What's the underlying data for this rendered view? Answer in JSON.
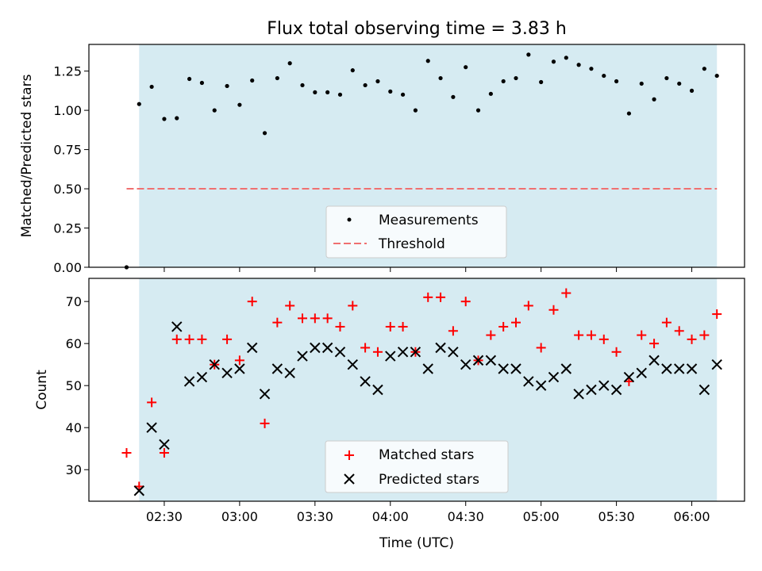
{
  "chart_data": [
    {
      "type": "scatter",
      "title": "Flux total observing time = 3.83 h",
      "xlabel": "",
      "ylabel": "Matched/Predicted stars",
      "xlim": [
        2.0,
        6.35
      ],
      "ylim": [
        0.0,
        1.42
      ],
      "yticks": [
        0.0,
        0.25,
        0.5,
        0.75,
        1.0,
        1.25
      ],
      "ytick_labels": [
        "0.00",
        "0.25",
        "0.50",
        "0.75",
        "1.00",
        "1.25"
      ],
      "shaded_span": [
        2.3333,
        6.1667
      ],
      "threshold": {
        "value": 0.5,
        "x_from": 2.25,
        "x_to": 6.1667,
        "color": "#f07070"
      },
      "legend": {
        "location": "lower center",
        "entries": [
          "Measurements",
          "Threshold"
        ]
      },
      "series": [
        {
          "name": "Measurements",
          "color": "#000000",
          "x": [
            2.25,
            2.3333,
            2.4167,
            2.5,
            2.5833,
            2.6667,
            2.75,
            2.8333,
            2.9167,
            3.0,
            3.0833,
            3.1667,
            3.25,
            3.3333,
            3.4167,
            3.5,
            3.5833,
            3.6667,
            3.75,
            3.8333,
            3.9167,
            4.0,
            4.0833,
            4.1667,
            4.25,
            4.3333,
            4.4167,
            4.5,
            4.5833,
            4.6667,
            4.75,
            4.8333,
            4.9167,
            5.0,
            5.0833,
            5.1667,
            5.25,
            5.3333,
            5.4167,
            5.5,
            5.5833,
            5.6667,
            5.75,
            5.8333,
            5.9167,
            6.0,
            6.0833,
            6.1667
          ],
          "y": [
            0.0,
            1.04,
            1.15,
            0.945,
            0.95,
            1.2,
            1.175,
            1.0,
            1.155,
            1.035,
            1.19,
            0.855,
            1.205,
            1.3,
            1.16,
            1.115,
            1.115,
            1.1,
            1.255,
            1.16,
            1.185,
            1.12,
            1.1,
            1.0,
            1.315,
            1.205,
            1.085,
            1.275,
            1.0,
            1.105,
            1.185,
            1.205,
            1.355,
            1.18,
            1.31,
            1.335,
            1.29,
            1.265,
            1.22,
            1.185,
            0.98,
            1.17,
            1.07,
            1.205,
            1.17,
            1.125,
            1.265,
            1.22
          ]
        }
      ]
    },
    {
      "type": "scatter",
      "title": "",
      "xlabel": "Time (UTC)",
      "ylabel": "Count",
      "xlim": [
        2.0,
        6.35
      ],
      "ylim": [
        22.5,
        75.5
      ],
      "yticks": [
        30,
        40,
        50,
        60,
        70
      ],
      "ytick_labels": [
        "30",
        "40",
        "50",
        "60",
        "70"
      ],
      "xticks": [
        2.5,
        3.0,
        3.5,
        4.0,
        4.5,
        5.0,
        5.5,
        6.0
      ],
      "xtick_labels": [
        "02:30",
        "03:00",
        "03:30",
        "04:00",
        "04:30",
        "05:00",
        "05:30",
        "06:00"
      ],
      "shaded_span": [
        2.3333,
        6.1667
      ],
      "legend": {
        "location": "lower center",
        "entries": [
          "Matched stars",
          "Predicted stars"
        ]
      },
      "series": [
        {
          "name": "Matched stars",
          "marker": "+",
          "color": "#ff0000",
          "x": [
            2.25,
            2.3333,
            2.4167,
            2.5,
            2.5833,
            2.6667,
            2.75,
            2.8333,
            2.9167,
            3.0,
            3.0833,
            3.1667,
            3.25,
            3.3333,
            3.4167,
            3.5,
            3.5833,
            3.6667,
            3.75,
            3.8333,
            3.9167,
            4.0,
            4.0833,
            4.1667,
            4.25,
            4.3333,
            4.4167,
            4.5,
            4.5833,
            4.6667,
            4.75,
            4.8333,
            4.9167,
            5.0,
            5.0833,
            5.1667,
            5.25,
            5.3333,
            5.4167,
            5.5,
            5.5833,
            5.6667,
            5.75,
            5.8333,
            5.9167,
            6.0,
            6.0833,
            6.1667
          ],
          "y": [
            34,
            26,
            46,
            34,
            61,
            61,
            61,
            55,
            61,
            56,
            70,
            41,
            65,
            69,
            66,
            66,
            66,
            64,
            69,
            59,
            58,
            64,
            64,
            58,
            71,
            71,
            63,
            70,
            56,
            62,
            64,
            65,
            69,
            59,
            68,
            72,
            62,
            62,
            61,
            58,
            51,
            62,
            60,
            65,
            63,
            61,
            62,
            67
          ]
        },
        {
          "name": "Predicted stars",
          "marker": "x",
          "color": "#000000",
          "x": [
            2.3333,
            2.4167,
            2.5,
            2.5833,
            2.6667,
            2.75,
            2.8333,
            2.9167,
            3.0,
            3.0833,
            3.1667,
            3.25,
            3.3333,
            3.4167,
            3.5,
            3.5833,
            3.6667,
            3.75,
            3.8333,
            3.9167,
            4.0,
            4.0833,
            4.1667,
            4.25,
            4.3333,
            4.4167,
            4.5,
            4.5833,
            4.6667,
            4.75,
            4.8333,
            4.9167,
            5.0,
            5.0833,
            5.1667,
            5.25,
            5.3333,
            5.4167,
            5.5,
            5.5833,
            5.6667,
            5.75,
            5.8333,
            5.9167,
            6.0,
            6.0833,
            6.1667
          ],
          "y": [
            25,
            40,
            36,
            64,
            51,
            52,
            55,
            53,
            54,
            59,
            48,
            54,
            53,
            57,
            59,
            59,
            58,
            55,
            51,
            49,
            57,
            58,
            58,
            54,
            59,
            58,
            55,
            56,
            56,
            54,
            54,
            51,
            50,
            52,
            54,
            48,
            49,
            50,
            49,
            52,
            53,
            56,
            54,
            54,
            54,
            49,
            55
          ]
        }
      ]
    }
  ]
}
